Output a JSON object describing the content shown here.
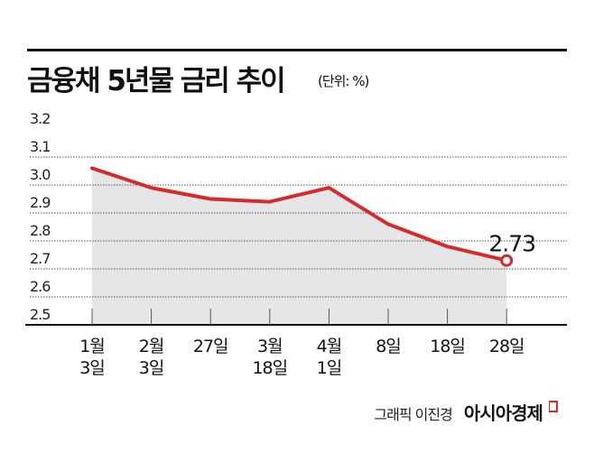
{
  "header": {
    "title": "금융채 5년물 금리 추이",
    "unit": "(단위: %)"
  },
  "chart_data": {
    "type": "area",
    "title": "금융채 5년물 금리 추이",
    "unit_label": "(단위: %)",
    "categories": [
      [
        "1월",
        "3일"
      ],
      [
        "2월",
        "3일"
      ],
      [
        "27일",
        ""
      ],
      [
        "3월",
        "18일"
      ],
      [
        "4월",
        "1일"
      ],
      [
        "8일",
        ""
      ],
      [
        "18일",
        ""
      ],
      [
        "28일",
        ""
      ]
    ],
    "values": [
      3.06,
      2.99,
      2.95,
      2.94,
      2.99,
      2.86,
      2.78,
      2.73
    ],
    "ylim": [
      2.5,
      3.2
    ],
    "yticks": [
      "3.2",
      "3.1",
      "3.0",
      "2.9",
      "2.8",
      "2.7",
      "2.6",
      "2.5"
    ],
    "annotation": {
      "index": 7,
      "label": "2.73"
    },
    "grid": true,
    "colors": {
      "line": "#d62b2b",
      "fill": "#e6e6e8",
      "grid": "#555555"
    }
  },
  "footer": {
    "credit": "그래픽 이진경",
    "brand": "아시아경제"
  }
}
